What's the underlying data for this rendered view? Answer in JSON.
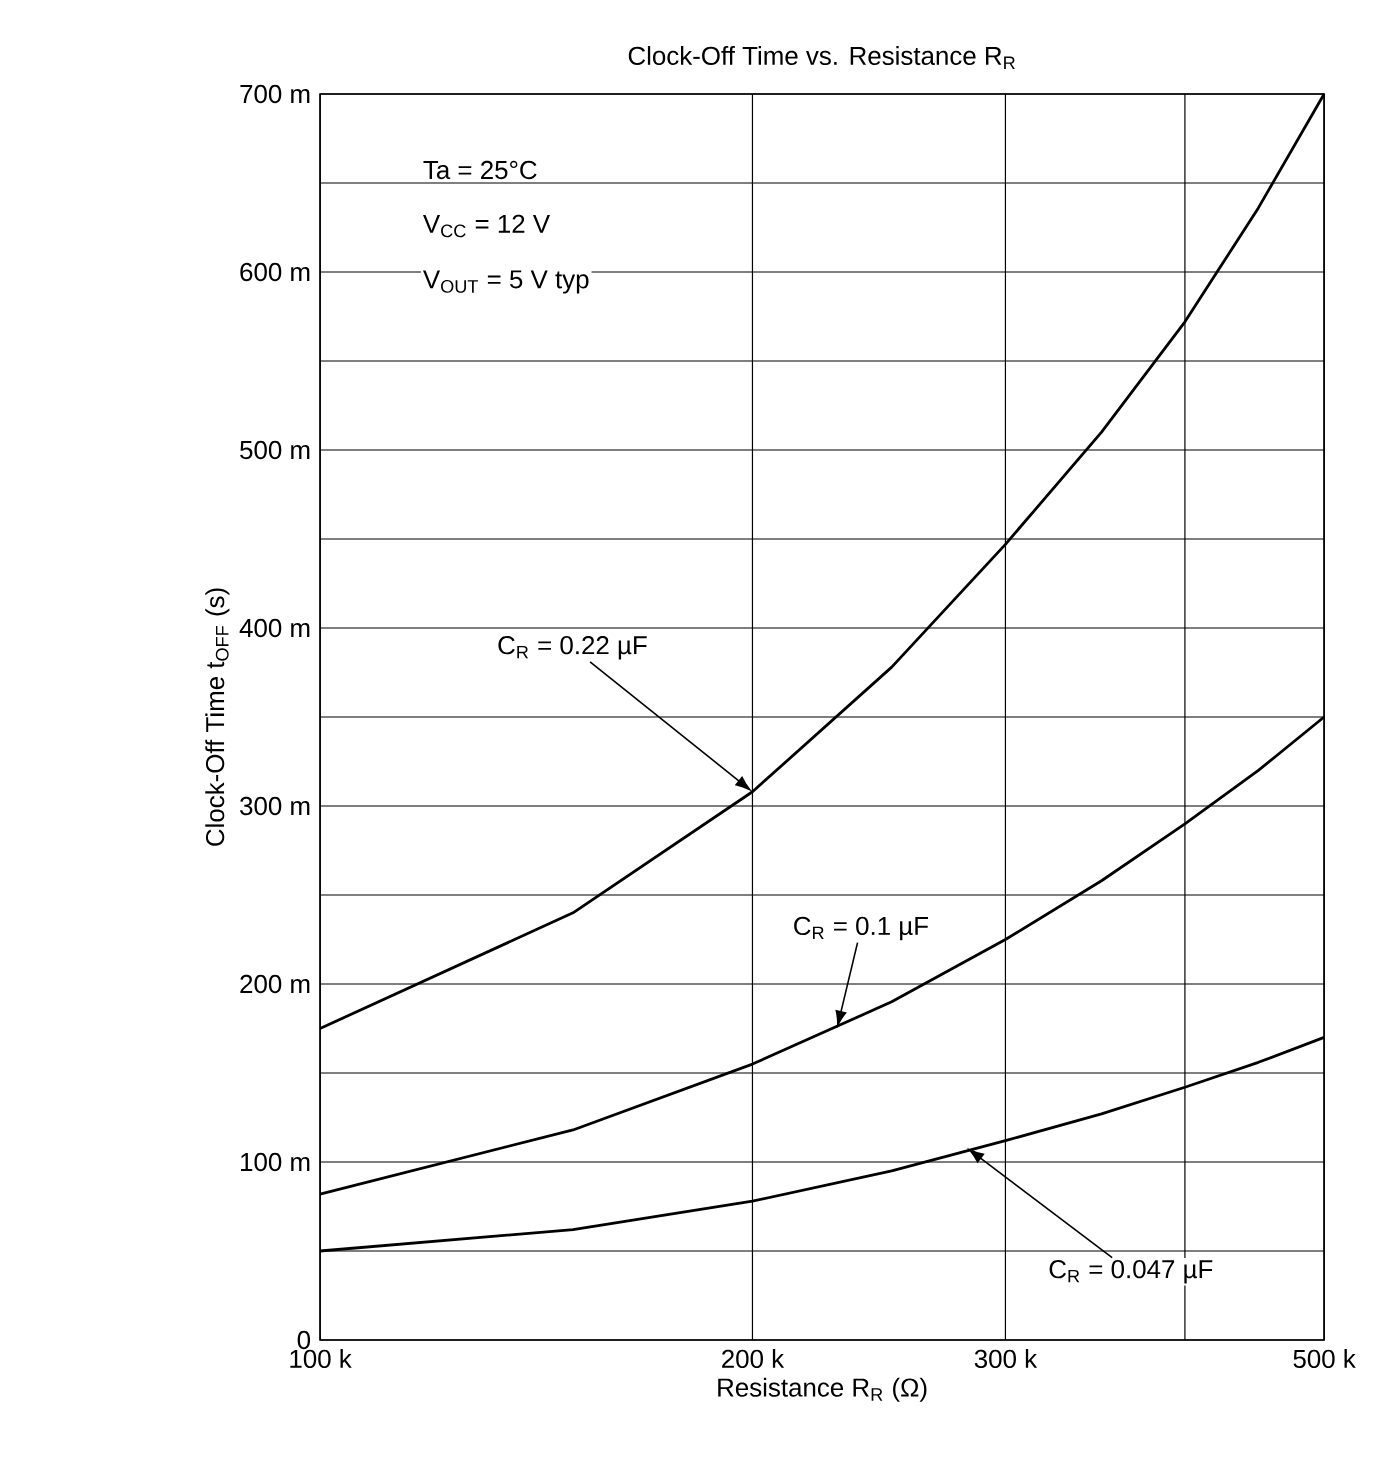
{
  "chart_data": {
    "type": "line",
    "title": "Clock-Off Time vs. Resistance R$_{R}$",
    "xlabel": "Resistance  R$_{R}$  (Ω)",
    "ylabel": "Clock-Off Time  t$_{OFF}$  (s)",
    "x": [
      100000,
      150000,
      200000,
      250000,
      300000,
      350000,
      400000,
      450000,
      500000
    ],
    "series": [
      {
        "color": "#000000",
        "values": [
          175,
          240,
          308,
          378,
          447,
          510,
          572,
          636,
          700
        ]
      },
      {
        "color": "#000000",
        "values": [
          82,
          118,
          155,
          190,
          225,
          258,
          290,
          320,
          350
        ]
      },
      {
        "color": "#000000",
        "values": [
          50,
          62,
          78,
          95,
          112,
          127,
          142,
          156,
          170
        ]
      }
    ],
    "log": "x",
    "xlim": [
      100000,
      500000
    ],
    "ylim": [
      0,
      700
    ],
    "xticks": [
      {
        "value": 100000,
        "label": "100 k"
      },
      {
        "value": 200000,
        "label": "200 k"
      },
      {
        "value": 300000,
        "label": "300 k"
      },
      {
        "value": 400000,
        "label": null
      },
      {
        "value": 500000,
        "label": "500 k"
      }
    ],
    "yticks": [
      0,
      {
        "value": 50,
        "label": null
      },
      {
        "value": 100,
        "label": "100 m"
      },
      {
        "value": 150,
        "label": null
      },
      {
        "value": 200,
        "label": "200 m"
      },
      {
        "value": 250,
        "label": null
      },
      {
        "value": 300,
        "label": "300 m"
      },
      {
        "value": 350,
        "label": null
      },
      {
        "value": 400,
        "label": "400 m"
      },
      {
        "value": 450,
        "label": null
      },
      {
        "value": 500,
        "label": "500 m"
      },
      {
        "value": 550,
        "label": null
      },
      {
        "value": 600,
        "label": "600 m"
      },
      {
        "value": 650,
        "label": null
      },
      {
        "value": 700,
        "label": "700 m"
      }
    ],
    "grid": true,
    "marker": "none",
    "line_style": "solid",
    "annotations": [
      "Ta = 25°C",
      "V$_{CC}$ = 12 V",
      "V$_{OUT}$ = 5 V typ",
      {
        "text": "C$_{R}$ = 0.22 µF",
        "x": 200000,
        "y": 308
      },
      {
        "text": "C$_{R}$ = 0.1 µF",
        "x": 229000,
        "y": 175
      },
      {
        "text": "C$_{R}$ = 0.047 µF",
        "x": 282000,
        "y": 108
      }
    ]
  }
}
